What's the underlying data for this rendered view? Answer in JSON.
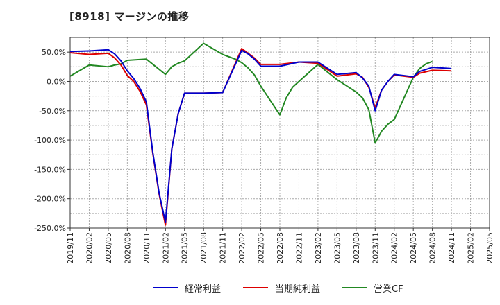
{
  "chart_data": {
    "type": "line",
    "title": "[8918]  マージンの推移",
    "xlabel": "",
    "ylabel": "",
    "ylim": [
      -250,
      75
    ],
    "yticks": [
      50,
      0,
      -50,
      -100,
      -150,
      -200,
      -250
    ],
    "ytick_labels": [
      "50.0%",
      "0.0%",
      "-50.0%",
      "-100.0%",
      "-150.0%",
      "-200.0%",
      "-250.0%"
    ],
    "x_start": "2019/11",
    "x_end": "2025/05",
    "xtick_labels": [
      "2019/11",
      "2020/02",
      "2020/05",
      "2020/08",
      "2020/11",
      "2021/02",
      "2021/05",
      "2021/08",
      "2021/11",
      "2022/02",
      "2022/05",
      "2022/08",
      "2022/11",
      "2023/02",
      "2023/05",
      "2023/08",
      "2023/11",
      "2024/02",
      "2024/05",
      "2024/08",
      "2024/11",
      "2025/02",
      "2025/05"
    ],
    "grid": true,
    "legend_position": "bottom",
    "series": [
      {
        "name": "経常利益",
        "color": "#0000cc",
        "points": [
          [
            "2019/11",
            51
          ],
          [
            "2020/02",
            52
          ],
          [
            "2020/05",
            54
          ],
          [
            "2020/06",
            47
          ],
          [
            "2020/07",
            35
          ],
          [
            "2020/08",
            18
          ],
          [
            "2020/09",
            5
          ],
          [
            "2020/10",
            -12
          ],
          [
            "2020/11",
            -35
          ],
          [
            "2020/12",
            -120
          ],
          [
            "2021/01",
            -190
          ],
          [
            "2021/02",
            -240
          ],
          [
            "2021/03",
            -115
          ],
          [
            "2021/04",
            -55
          ],
          [
            "2021/05",
            -20
          ],
          [
            "2021/08",
            -20
          ],
          [
            "2021/11",
            -19
          ],
          [
            "2022/02",
            53
          ],
          [
            "2022/03",
            47
          ],
          [
            "2022/04",
            38
          ],
          [
            "2022/05",
            26
          ],
          [
            "2022/08",
            26
          ],
          [
            "2022/11",
            33
          ],
          [
            "2023/02",
            33
          ],
          [
            "2023/05",
            12
          ],
          [
            "2023/08",
            15
          ],
          [
            "2023/09",
            6
          ],
          [
            "2023/10",
            -8
          ],
          [
            "2023/11",
            -50
          ],
          [
            "2023/12",
            -15
          ],
          [
            "2024/01",
            0
          ],
          [
            "2024/02",
            12
          ],
          [
            "2024/05",
            8
          ],
          [
            "2024/06",
            17
          ],
          [
            "2024/08",
            24
          ],
          [
            "2024/11",
            22
          ]
        ]
      },
      {
        "name": "当期純利益",
        "color": "#dd0000",
        "points": [
          [
            "2019/11",
            49
          ],
          [
            "2020/02",
            46
          ],
          [
            "2020/05",
            48
          ],
          [
            "2020/06",
            40
          ],
          [
            "2020/07",
            28
          ],
          [
            "2020/08",
            10
          ],
          [
            "2020/09",
            0
          ],
          [
            "2020/10",
            -17
          ],
          [
            "2020/11",
            -40
          ],
          [
            "2020/12",
            -122
          ],
          [
            "2021/01",
            -192
          ],
          [
            "2021/02",
            -245
          ],
          [
            "2021/03",
            -115
          ],
          [
            "2021/04",
            -55
          ],
          [
            "2021/05",
            -20
          ],
          [
            "2021/08",
            -20
          ],
          [
            "2021/11",
            -19
          ],
          [
            "2022/02",
            56
          ],
          [
            "2022/03",
            48
          ],
          [
            "2022/04",
            40
          ],
          [
            "2022/05",
            29
          ],
          [
            "2022/08",
            29
          ],
          [
            "2022/11",
            33
          ],
          [
            "2023/02",
            31
          ],
          [
            "2023/05",
            9
          ],
          [
            "2023/08",
            13
          ],
          [
            "2023/09",
            7
          ],
          [
            "2023/10",
            -10
          ],
          [
            "2023/11",
            -45
          ],
          [
            "2023/12",
            -15
          ],
          [
            "2024/01",
            0
          ],
          [
            "2024/02",
            11
          ],
          [
            "2024/05",
            7
          ],
          [
            "2024/06",
            14
          ],
          [
            "2024/08",
            19
          ],
          [
            "2024/11",
            18
          ]
        ]
      },
      {
        "name": "営業CF",
        "color": "#228822",
        "points": [
          [
            "2019/11",
            9
          ],
          [
            "2020/02",
            28
          ],
          [
            "2020/05",
            25
          ],
          [
            "2020/06",
            28
          ],
          [
            "2020/07",
            30
          ],
          [
            "2020/08",
            36
          ],
          [
            "2020/11",
            38
          ],
          [
            "2021/02",
            12
          ],
          [
            "2021/03",
            25
          ],
          [
            "2021/04",
            31
          ],
          [
            "2021/05",
            35
          ],
          [
            "2021/08",
            65
          ],
          [
            "2021/11",
            46
          ],
          [
            "2022/01",
            38
          ],
          [
            "2022/02",
            32
          ],
          [
            "2022/03",
            23
          ],
          [
            "2022/04",
            11
          ],
          [
            "2022/05",
            -8
          ],
          [
            "2022/08",
            -57
          ],
          [
            "2022/09",
            -28
          ],
          [
            "2022/10",
            -10
          ],
          [
            "2022/11",
            0
          ],
          [
            "2023/02",
            29
          ],
          [
            "2023/05",
            3
          ],
          [
            "2023/08",
            -18
          ],
          [
            "2023/09",
            -28
          ],
          [
            "2023/10",
            -48
          ],
          [
            "2023/11",
            -105
          ],
          [
            "2023/12",
            -85
          ],
          [
            "2024/01",
            -73
          ],
          [
            "2024/02",
            -65
          ],
          [
            "2024/05",
            7
          ],
          [
            "2024/06",
            22
          ],
          [
            "2024/07",
            30
          ],
          [
            "2024/08",
            34
          ]
        ]
      }
    ]
  }
}
